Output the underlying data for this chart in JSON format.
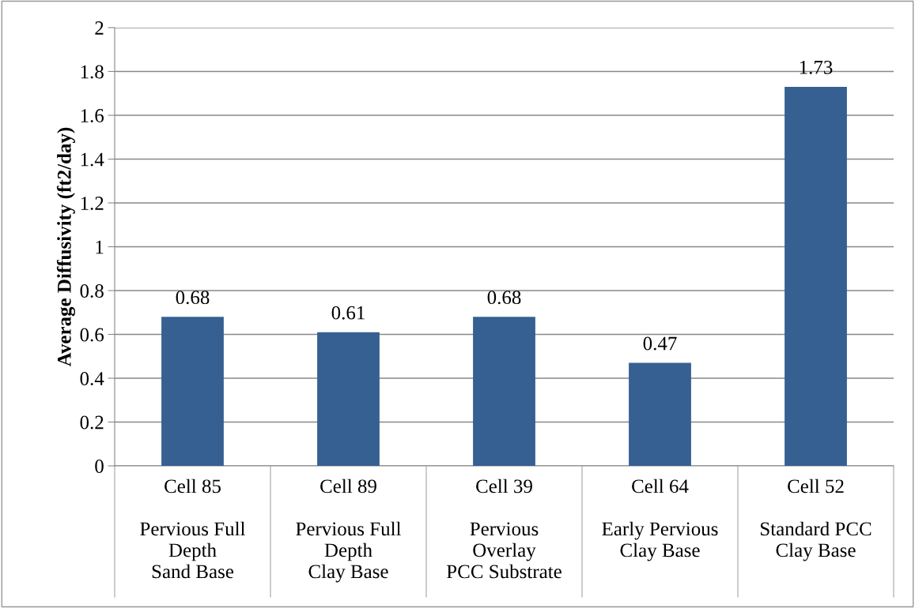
{
  "chart_data": {
    "type": "bar",
    "ylabel": "Average Diffusivity (ft2/day)",
    "categories": [
      "Cell 85\n\nPervious Full\nDepth\nSand Base",
      "Cell 89\n\nPervious Full\nDepth\nClay Base",
      "Cell 39\n\nPervious\nOverlay\nPCC Substrate",
      "Cell 64\n\nEarly Pervious\nClay Base",
      "Cell 52\n\nStandard PCC\nClay Base"
    ],
    "values": [
      0.68,
      0.61,
      0.68,
      0.47,
      1.73
    ],
    "color": "#366092",
    "ylim": [
      0,
      2
    ],
    "yticks": [
      0,
      0.2,
      0.4,
      0.6,
      0.8,
      1,
      1.2,
      1.4,
      1.6,
      1.8,
      2
    ],
    "grid": "y",
    "data_labels": true,
    "legend": false
  }
}
